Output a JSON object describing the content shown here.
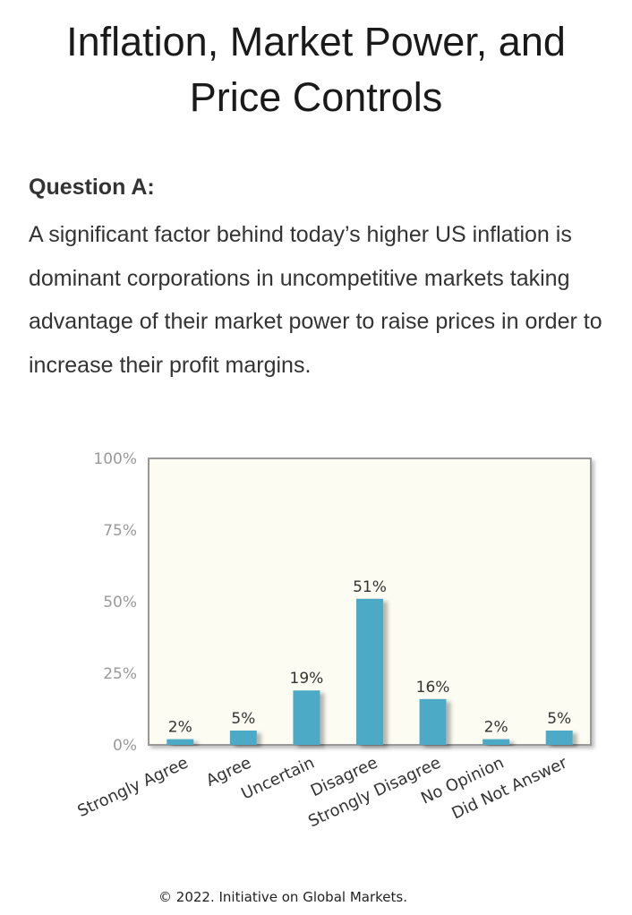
{
  "page": {
    "title": "Inflation, Market Power, and Price Controls",
    "question_label": "Question A:",
    "question_text": "A significant factor behind today’s higher US inflation is dominant corporations in uncompetitive markets taking advantage of their market power to raise prices in order to increase their profit margins.",
    "copyright": "© 2022. Initiative on Global Markets."
  },
  "colors": {
    "bar": "#4eaac7",
    "plot_background": "#fdfcf2",
    "plot_border": "#999999",
    "tick_text": "#999999",
    "label_text": "#333333"
  },
  "chart_data": {
    "type": "bar",
    "categories": [
      "Strongly Agree",
      "Agree",
      "Uncertain",
      "Disagree",
      "Strongly Disagree",
      "No Opinion",
      "Did Not Answer"
    ],
    "values": [
      2,
      5,
      19,
      51,
      16,
      2,
      5
    ],
    "data_labels": [
      "2%",
      "5%",
      "19%",
      "51%",
      "16%",
      "2%",
      "5%"
    ],
    "yticks": [
      "0%",
      "25%",
      "50%",
      "75%",
      "100%"
    ],
    "ylim": [
      0,
      100
    ],
    "grid": false,
    "legend": "none",
    "title": "",
    "xlabel": "",
    "ylabel": ""
  }
}
